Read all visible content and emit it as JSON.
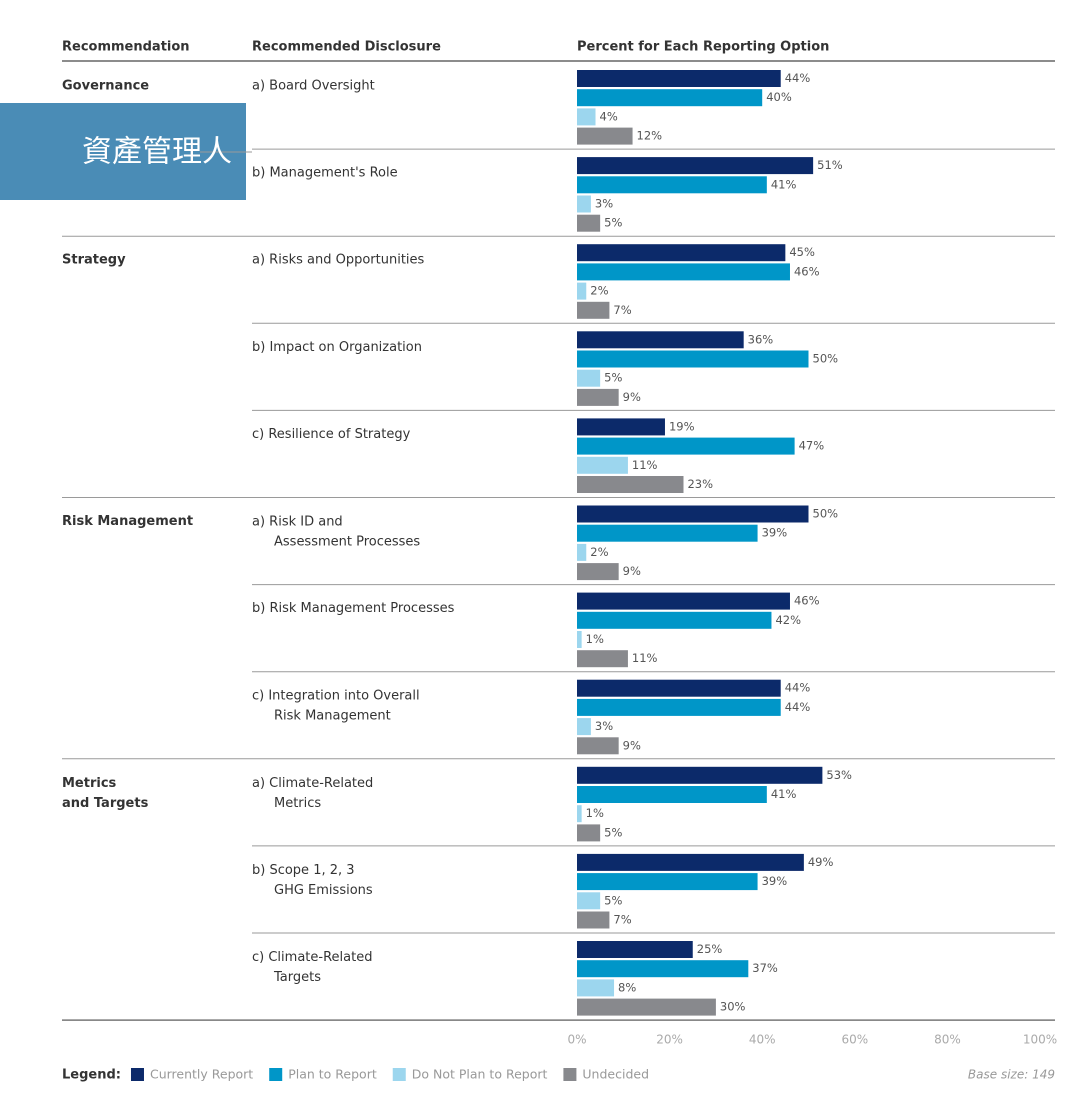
{
  "chart_data": {
    "type": "bar",
    "orientation": "horizontal",
    "column_headers": [
      "Recommendation",
      "Recommended Disclosure",
      "Percent for Each Reporting Option"
    ],
    "recommendations": [
      "Governance",
      null,
      "Strategy",
      null,
      null,
      "Risk Management",
      null,
      null,
      "Metrics\nand Targets",
      null,
      null
    ],
    "categories": [
      "a) Board Oversight",
      "b) Management's Role",
      "a) Risks and Opportunities",
      "b) Impact on Organization",
      "c) Resilience of Strategy",
      "a) Risk ID and\nAssessment Processes",
      "b) Risk Management Processes",
      "c) Integration into Overall\nRisk Management",
      "a) Climate-Related\nMetrics",
      "b) Scope 1, 2, 3\nGHG Emissions",
      "c) Climate-Related\nTargets"
    ],
    "series": [
      {
        "name": "Currently Report",
        "color": "#0c2a6a",
        "values": [
          44,
          51,
          45,
          36,
          19,
          50,
          46,
          44,
          53,
          49,
          25
        ],
        "value_labels": [
          "44%",
          "51%",
          "45%",
          "36%",
          "19%",
          "50%",
          "46%",
          "44%",
          "53%",
          "49%",
          "25%"
        ]
      },
      {
        "name": "Plan to Report",
        "color": "#0096c8",
        "values": [
          40,
          41,
          46,
          50,
          47,
          39,
          42,
          44,
          41,
          39,
          37
        ],
        "value_labels": [
          "40%",
          "41%",
          "46%",
          "50%",
          "47%",
          "39%",
          "42%",
          "44%",
          "41%",
          "39%",
          "37%"
        ]
      },
      {
        "name": "Do Not Plan to Report",
        "color": "#9cd6ee",
        "values": [
          4,
          3,
          2,
          5,
          11,
          2,
          1,
          3,
          1,
          5,
          8
        ],
        "value_labels": [
          "4%",
          "3%",
          "2%",
          "5%",
          "11%",
          "2%",
          "1%",
          "3%",
          "1%",
          "5%",
          "8%"
        ]
      },
      {
        "name": "Undecided",
        "color": "#88898d",
        "values": [
          12,
          5,
          7,
          9,
          23,
          9,
          11,
          9,
          5,
          7,
          30
        ],
        "value_labels": [
          "12%",
          "5%",
          "7%",
          "9%",
          "23%",
          "9%",
          "11%",
          "9%",
          "5%",
          "7%",
          "30%"
        ]
      }
    ],
    "xlim": [
      0,
      100
    ],
    "xticks": [
      {
        "value": 0,
        "label": "0%"
      },
      {
        "value": 20,
        "label": "20%"
      },
      {
        "value": 40,
        "label": "40%"
      },
      {
        "value": 60,
        "label": "60%"
      },
      {
        "value": 80,
        "label": "80%"
      },
      {
        "value": 100,
        "label": "100%"
      }
    ],
    "legend_title": "Legend:",
    "base_size": "Base size: 149",
    "annotation": "資產管理人"
  }
}
